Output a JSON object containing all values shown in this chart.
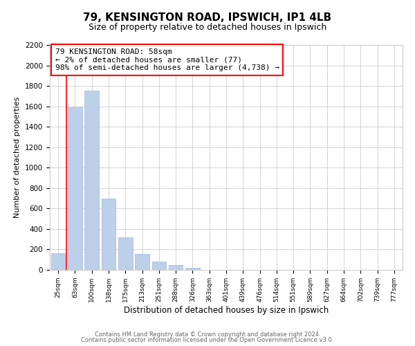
{
  "title": "79, KENSINGTON ROAD, IPSWICH, IP1 4LB",
  "subtitle": "Size of property relative to detached houses in Ipswich",
  "xlabel": "Distribution of detached houses by size in Ipswich",
  "ylabel": "Number of detached properties",
  "bar_labels": [
    "25sqm",
    "63sqm",
    "100sqm",
    "138sqm",
    "175sqm",
    "213sqm",
    "251sqm",
    "288sqm",
    "326sqm",
    "363sqm",
    "401sqm",
    "439sqm",
    "476sqm",
    "514sqm",
    "551sqm",
    "589sqm",
    "627sqm",
    "664sqm",
    "702sqm",
    "739sqm",
    "777sqm"
  ],
  "bar_heights": [
    160,
    1590,
    1750,
    700,
    315,
    155,
    80,
    45,
    20,
    0,
    0,
    0,
    0,
    0,
    0,
    0,
    0,
    0,
    0,
    0,
    0
  ],
  "bar_color": "#bdd0e9",
  "ylim": [
    0,
    2200
  ],
  "yticks": [
    0,
    200,
    400,
    600,
    800,
    1000,
    1200,
    1400,
    1600,
    1800,
    2000,
    2200
  ],
  "annotation_title": "79 KENSINGTON ROAD: 58sqm",
  "annotation_line1": "← 2% of detached houses are smaller (77)",
  "annotation_line2": "98% of semi-detached houses are larger (4,738) →",
  "footer_line1": "Contains HM Land Registry data © Crown copyright and database right 2024.",
  "footer_line2": "Contains public sector information licensed under the Open Government Licence v3.0.",
  "background_color": "#ffffff",
  "grid_color": "#cccccc"
}
